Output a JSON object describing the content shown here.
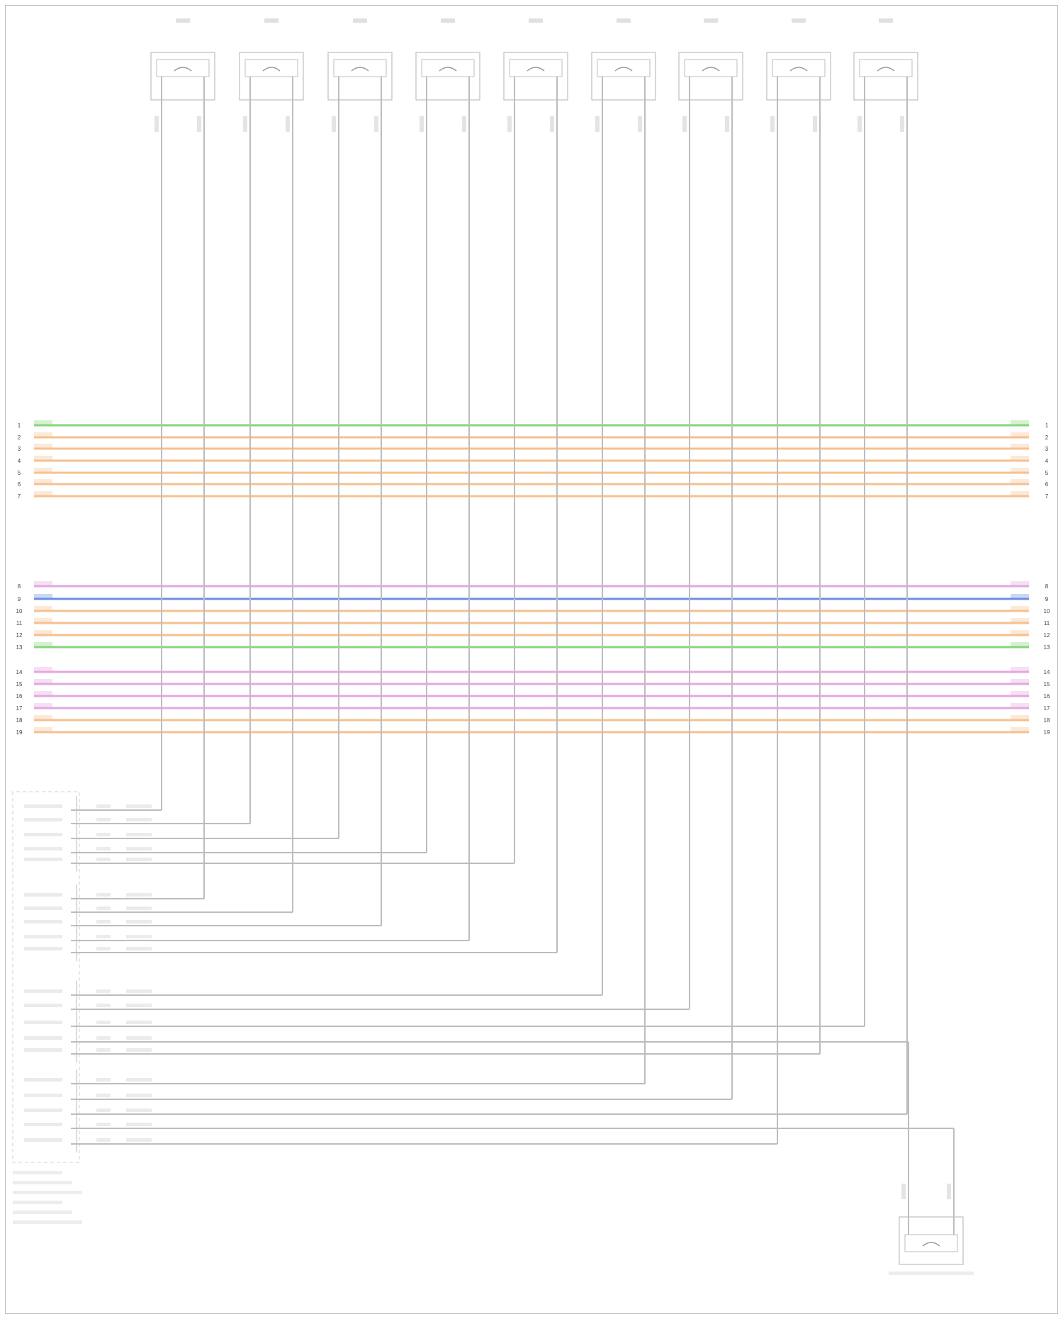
{
  "diagram": {
    "footer_ref": "",
    "wire_colors": {
      "module_wire": "#bdbdbd",
      "green": "#86d67a",
      "orange": "#f6c08f",
      "pink": "#e3a7e0",
      "blue": "#6b8fe0"
    },
    "sensors": [
      {
        "label": "",
        "pin_a": "",
        "pin_b": ""
      },
      {
        "label": "",
        "pin_a": "",
        "pin_b": ""
      },
      {
        "label": "",
        "pin_a": "",
        "pin_b": ""
      },
      {
        "label": "",
        "pin_a": "",
        "pin_b": ""
      },
      {
        "label": "",
        "pin_a": "",
        "pin_b": ""
      },
      {
        "label": "",
        "pin_a": "",
        "pin_b": ""
      },
      {
        "label": "",
        "pin_a": "",
        "pin_b": ""
      },
      {
        "label": "",
        "pin_a": "",
        "pin_b": ""
      },
      {
        "label": "",
        "pin_a": "",
        "pin_b": ""
      }
    ],
    "bottom_sensor": {
      "label": "",
      "pin_a": "",
      "pin_b": ""
    },
    "harness_groups": [
      {
        "id": "group1",
        "wires": [
          {
            "color": "green",
            "code": "",
            "pin": "1"
          },
          {
            "color": "orange",
            "code": "",
            "pin": "2"
          },
          {
            "color": "orange",
            "code": "",
            "pin": "3"
          },
          {
            "color": "orange",
            "code": "",
            "pin": "4"
          },
          {
            "color": "orange",
            "code": "",
            "pin": "5"
          },
          {
            "color": "orange",
            "code": "",
            "pin": "6"
          },
          {
            "color": "orange",
            "code": "",
            "pin": "7"
          }
        ]
      },
      {
        "id": "group2",
        "wires": [
          {
            "color": "pink",
            "code": "",
            "pin": "8"
          },
          {
            "color": "blue",
            "code": "",
            "pin": "9"
          },
          {
            "color": "orange",
            "code": "",
            "pin": "10"
          },
          {
            "color": "orange",
            "code": "",
            "pin": "11"
          },
          {
            "color": "orange",
            "code": "",
            "pin": "12"
          },
          {
            "color": "green",
            "code": "",
            "pin": "13"
          }
        ]
      },
      {
        "id": "group3",
        "wires": [
          {
            "color": "pink",
            "code": "",
            "pin": "14"
          },
          {
            "color": "pink",
            "code": "",
            "pin": "15"
          },
          {
            "color": "pink",
            "code": "",
            "pin": "16"
          },
          {
            "color": "pink",
            "code": "",
            "pin": "17"
          },
          {
            "color": "orange",
            "code": "",
            "pin": "18"
          },
          {
            "color": "orange",
            "code": "",
            "pin": "19"
          }
        ]
      }
    ],
    "module": {
      "label_lines": [
        "",
        "",
        "",
        "",
        "",
        ""
      ],
      "header": "",
      "connector_blocks": [
        {
          "rows": [
            {
              "signal": "",
              "pin": "",
              "wire": "",
              "circuit": ""
            },
            {
              "signal": "",
              "pin": "",
              "wire": "",
              "circuit": ""
            },
            {
              "signal": "",
              "pin": "",
              "wire": "",
              "circuit": ""
            },
            {
              "signal": "",
              "pin": "",
              "wire": "",
              "circuit": ""
            },
            {
              "signal": "",
              "pin": "",
              "wire": "",
              "circuit": ""
            }
          ]
        },
        {
          "rows": [
            {
              "signal": "",
              "pin": "",
              "wire": "",
              "circuit": ""
            },
            {
              "signal": "",
              "pin": "",
              "wire": "",
              "circuit": ""
            },
            {
              "signal": "",
              "pin": "",
              "wire": "",
              "circuit": ""
            },
            {
              "signal": "",
              "pin": "",
              "wire": "",
              "circuit": ""
            },
            {
              "signal": "",
              "pin": "",
              "wire": "",
              "circuit": ""
            }
          ]
        },
        {
          "rows": [
            {
              "signal": "",
              "pin": "",
              "wire": "",
              "circuit": ""
            },
            {
              "signal": "",
              "pin": "",
              "wire": "",
              "circuit": ""
            },
            {
              "signal": "",
              "pin": "",
              "wire": "",
              "circuit": ""
            },
            {
              "signal": "",
              "pin": "",
              "wire": "",
              "circuit": ""
            },
            {
              "signal": "",
              "pin": "",
              "wire": "",
              "circuit": ""
            }
          ]
        },
        {
          "rows": [
            {
              "signal": "",
              "pin": "",
              "wire": "",
              "circuit": ""
            },
            {
              "signal": "",
              "pin": "",
              "wire": "",
              "circuit": ""
            },
            {
              "signal": "",
              "pin": "",
              "wire": "",
              "circuit": ""
            },
            {
              "signal": "",
              "pin": "",
              "wire": "",
              "circuit": ""
            },
            {
              "signal": "",
              "pin": "",
              "wire": "",
              "circuit": ""
            }
          ]
        }
      ]
    }
  }
}
